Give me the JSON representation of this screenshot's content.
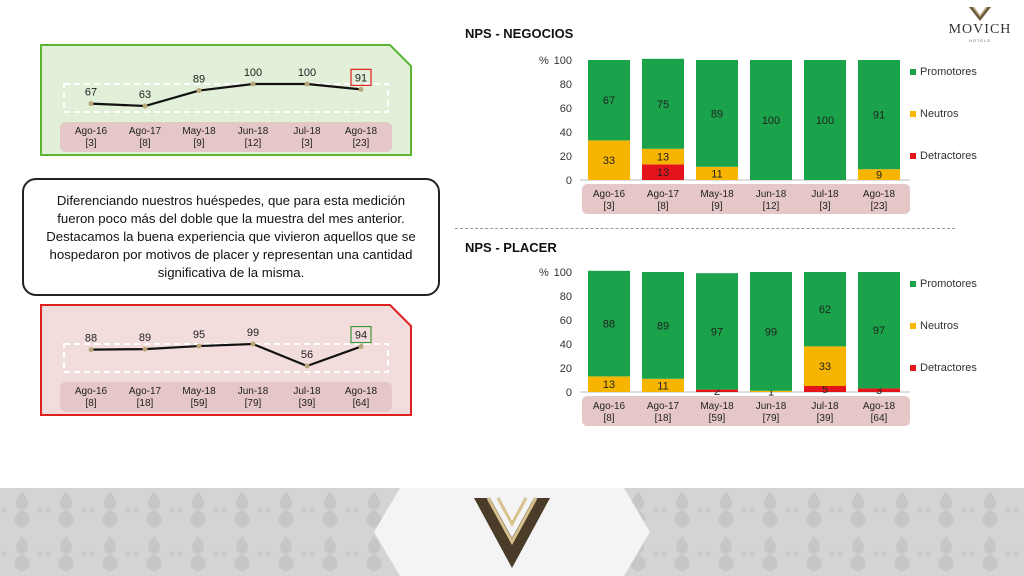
{
  "logo": {
    "name": "MOVICH",
    "sub": "HOTELS"
  },
  "summary_text": "Diferenciando nuestros huéspedes, que para esta medición fueron poco más del doble que la muestra del mes anterior. Destacamos la buena experiencia que vivieron aquellos que se hospedaron por motivos de placer y representan una cantidad significativa de la misma.",
  "colors": {
    "promotores": "#1aa34a",
    "neutros": "#f7b500",
    "detractores": "#e4151a",
    "green_panel_bg": "#e2efd9",
    "green_panel_border": "#5cb531",
    "red_panel_bg": "#f3dcdc",
    "red_panel_border": "#e02020",
    "label_bg": "#e6c7c7"
  },
  "chart_data": [
    {
      "id": "trend-negocios",
      "type": "line",
      "categories": [
        "Ago-16",
        "Ago-17",
        "May-18",
        "Jun-18",
        "Jul-18",
        "Ago-18"
      ],
      "samples": [
        "[3]",
        "[8]",
        "[9]",
        "[12]",
        "[3]",
        "[23]"
      ],
      "values": [
        67,
        63,
        89,
        100,
        100,
        91
      ],
      "highlight_last": true,
      "highlight_color": "#e02020"
    },
    {
      "id": "trend-placer",
      "type": "line",
      "categories": [
        "Ago-16",
        "Ago-17",
        "May-18",
        "Jun-18",
        "Jul-18",
        "Ago-18"
      ],
      "samples": [
        "[8]",
        "[18]",
        "[59]",
        "[79]",
        "[39]",
        "[64]"
      ],
      "values": [
        88,
        89,
        95,
        99,
        56,
        94
      ],
      "highlight_last": true,
      "highlight_color": "#3a9a3a"
    },
    {
      "id": "nps-negocios",
      "type": "bar",
      "stacked": true,
      "title": "NPS - NEGOCIOS",
      "ylabel": "%",
      "ylim": [
        0,
        100
      ],
      "yticks": [
        0,
        20,
        40,
        60,
        80,
        100
      ],
      "categories": [
        "Ago-16",
        "Ago-17",
        "May-18",
        "Jun-18",
        "Jul-18",
        "Ago-18"
      ],
      "samples": [
        "[3]",
        "[8]",
        "[9]",
        "[12]",
        "[3]",
        "[23]"
      ],
      "series": [
        {
          "name": "Detractores",
          "values": [
            0,
            13,
            0,
            0,
            0,
            0
          ],
          "labels": [
            "",
            "13",
            "",
            "",
            "",
            ""
          ]
        },
        {
          "name": "Neutros",
          "values": [
            33,
            13,
            11,
            0,
            0,
            9
          ],
          "labels": [
            "33",
            "13",
            "11",
            "",
            "",
            "9"
          ]
        },
        {
          "name": "Promotores",
          "values": [
            67,
            75,
            89,
            100,
            100,
            91
          ],
          "labels": [
            "67",
            "75",
            "89",
            "100",
            "100",
            "91"
          ]
        }
      ],
      "legend": [
        "Promotores",
        "Neutros",
        "Detractores"
      ]
    },
    {
      "id": "nps-placer",
      "type": "bar",
      "stacked": true,
      "title": "NPS - PLACER",
      "ylabel": "%",
      "ylim": [
        0,
        100
      ],
      "yticks": [
        0,
        20,
        40,
        60,
        80,
        100
      ],
      "categories": [
        "Ago-16",
        "Ago-17",
        "May-18",
        "Jun-18",
        "Jul-18",
        "Ago-18"
      ],
      "samples": [
        "[8]",
        "[18]",
        "[59]",
        "[79]",
        "[39]",
        "[64]"
      ],
      "series": [
        {
          "name": "Detractores",
          "values": [
            0,
            0,
            2,
            0,
            5,
            3
          ],
          "labels": [
            "",
            "",
            "2",
            "",
            "5",
            "3"
          ]
        },
        {
          "name": "Neutros",
          "values": [
            13,
            11,
            0,
            1,
            33,
            0
          ],
          "labels": [
            "13",
            "11",
            "",
            "1",
            "33",
            ""
          ]
        },
        {
          "name": "Promotores",
          "values": [
            88,
            89,
            97,
            99,
            62,
            97
          ],
          "labels": [
            "88",
            "89",
            "97",
            "99",
            "62",
            "97"
          ]
        }
      ],
      "legend": [
        "Promotores",
        "Neutros",
        "Detractores"
      ]
    }
  ]
}
